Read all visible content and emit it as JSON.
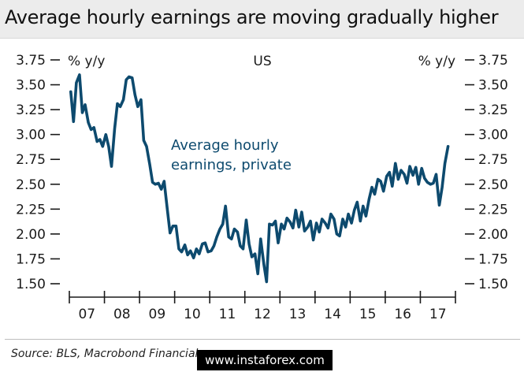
{
  "header": {
    "title": "Average hourly earnings are moving gradually higher"
  },
  "footer": {
    "source": "Source: BLS, Macrobond Financial",
    "watermark": "www.instaforex.com"
  },
  "colors": {
    "series": "#0d4a6e",
    "axis": "#1a1a1a"
  },
  "chart_data": {
    "type": "line",
    "title": "US",
    "ylabel_left": "% y/y",
    "ylabel_right": "% y/y",
    "ylim": [
      1.5,
      3.75
    ],
    "yticks": [
      "3.75",
      "3.50",
      "3.25",
      "3.00",
      "2.75",
      "2.50",
      "2.25",
      "2.00",
      "1.75",
      "1.50"
    ],
    "x_categories": [
      "07",
      "08",
      "09",
      "10",
      "11",
      "12",
      "13",
      "14",
      "15",
      "16",
      "17"
    ],
    "xlim": [
      2007.0,
      2018.0
    ],
    "grid": false,
    "series": [
      {
        "name": "Average hourly earnings, private",
        "x": [
          2007.04,
          2007.12,
          2007.2,
          2007.29,
          2007.37,
          2007.45,
          2007.54,
          2007.62,
          2007.7,
          2007.79,
          2007.87,
          2007.95,
          2008.04,
          2008.12,
          2008.2,
          2008.29,
          2008.37,
          2008.45,
          2008.54,
          2008.62,
          2008.7,
          2008.79,
          2008.87,
          2008.95,
          2009.04,
          2009.12,
          2009.2,
          2009.29,
          2009.37,
          2009.45,
          2009.54,
          2009.62,
          2009.7,
          2009.79,
          2009.87,
          2009.95,
          2010.04,
          2010.12,
          2010.2,
          2010.29,
          2010.37,
          2010.45,
          2010.54,
          2010.62,
          2010.7,
          2010.79,
          2010.87,
          2010.95,
          2011.04,
          2011.12,
          2011.2,
          2011.29,
          2011.37,
          2011.45,
          2011.54,
          2011.62,
          2011.7,
          2011.79,
          2011.87,
          2011.95,
          2012.04,
          2012.12,
          2012.2,
          2012.29,
          2012.37,
          2012.45,
          2012.54,
          2012.62,
          2012.7,
          2012.79,
          2012.87,
          2012.95,
          2013.04,
          2013.12,
          2013.2,
          2013.29,
          2013.37,
          2013.45,
          2013.54,
          2013.62,
          2013.7,
          2013.79,
          2013.87,
          2013.95,
          2014.04,
          2014.12,
          2014.2,
          2014.29,
          2014.37,
          2014.45,
          2014.54,
          2014.62,
          2014.7,
          2014.79,
          2014.87,
          2014.95,
          2015.04,
          2015.12,
          2015.2,
          2015.29,
          2015.37,
          2015.45,
          2015.54,
          2015.62,
          2015.7,
          2015.79,
          2015.87,
          2015.95,
          2016.04,
          2016.12,
          2016.2,
          2016.29,
          2016.37,
          2016.45,
          2016.54,
          2016.62,
          2016.7,
          2016.79,
          2016.87,
          2016.95,
          2017.04,
          2017.12,
          2017.2,
          2017.29,
          2017.37,
          2017.45,
          2017.54,
          2017.62,
          2017.7,
          2017.79
        ],
        "values": [
          3.43,
          3.13,
          3.52,
          3.6,
          3.22,
          3.3,
          3.12,
          3.05,
          3.07,
          2.93,
          2.95,
          2.88,
          3.0,
          2.88,
          2.68,
          3.06,
          3.31,
          3.28,
          3.35,
          3.55,
          3.58,
          3.57,
          3.4,
          3.28,
          3.35,
          2.94,
          2.88,
          2.7,
          2.52,
          2.5,
          2.51,
          2.45,
          2.53,
          2.25,
          2.01,
          2.08,
          2.08,
          1.85,
          1.82,
          1.89,
          1.79,
          1.83,
          1.76,
          1.85,
          1.8,
          1.9,
          1.91,
          1.82,
          1.83,
          1.88,
          1.97,
          2.05,
          2.1,
          2.28,
          1.97,
          1.95,
          2.05,
          2.02,
          1.88,
          1.85,
          2.14,
          1.9,
          1.77,
          1.8,
          1.6,
          1.95,
          1.7,
          1.52,
          2.1,
          2.09,
          2.13,
          1.91,
          2.1,
          2.05,
          2.16,
          2.12,
          2.06,
          2.24,
          2.07,
          2.22,
          2.03,
          2.07,
          2.13,
          1.94,
          2.11,
          2.02,
          2.15,
          2.11,
          2.06,
          2.2,
          2.15,
          2.0,
          1.98,
          2.15,
          2.07,
          2.2,
          2.11,
          2.24,
          2.32,
          2.13,
          2.28,
          2.18,
          2.35,
          2.47,
          2.4,
          2.55,
          2.53,
          2.43,
          2.58,
          2.62,
          2.48,
          2.71,
          2.55,
          2.64,
          2.6,
          2.51,
          2.68,
          2.59,
          2.67,
          2.5,
          2.66,
          2.56,
          2.52,
          2.5,
          2.51,
          2.6,
          2.29,
          2.47,
          2.71,
          2.88
        ]
      }
    ]
  }
}
